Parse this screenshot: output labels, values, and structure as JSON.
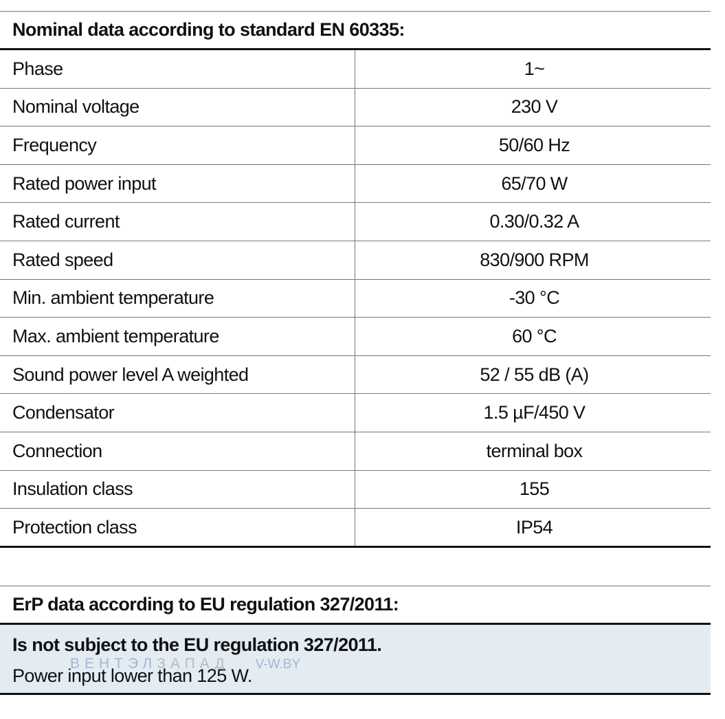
{
  "nominal": {
    "title": "Nominal data according to standard EN 60335:",
    "rows": [
      {
        "label": "Phase",
        "value": "1~"
      },
      {
        "label": "Nominal voltage",
        "value": "230 V"
      },
      {
        "label": "Frequency",
        "value": "50/60 Hz"
      },
      {
        "label": "Rated power input",
        "value": "65/70 W"
      },
      {
        "label": "Rated current",
        "value": "0.30/0.32 A"
      },
      {
        "label": "Rated speed",
        "value": "830/900 RPM"
      },
      {
        "label": "Min. ambient temperature",
        "value": "-30 °C"
      },
      {
        "label": "Max. ambient temperature",
        "value": "60 °C"
      },
      {
        "label": "Sound power level A weighted",
        "value": "52 / 55 dB (A)"
      },
      {
        "label": "Condensator",
        "value": "1.5 µF/450 V"
      },
      {
        "label": "Connection",
        "value": "terminal box"
      },
      {
        "label": "Insulation class",
        "value": "155"
      },
      {
        "label": "Protection class",
        "value": "IP54"
      }
    ]
  },
  "erp": {
    "title": "ErP data according to EU regulation 327/2011:",
    "statement": "Is not subject to the EU regulation 327/2011.",
    "reason": "Power input lower than 125 W."
  },
  "watermark": {
    "part_a": "ВЕНТЭЛ",
    "part_b": "ЗАПАД",
    "site": "V-W.BY"
  }
}
